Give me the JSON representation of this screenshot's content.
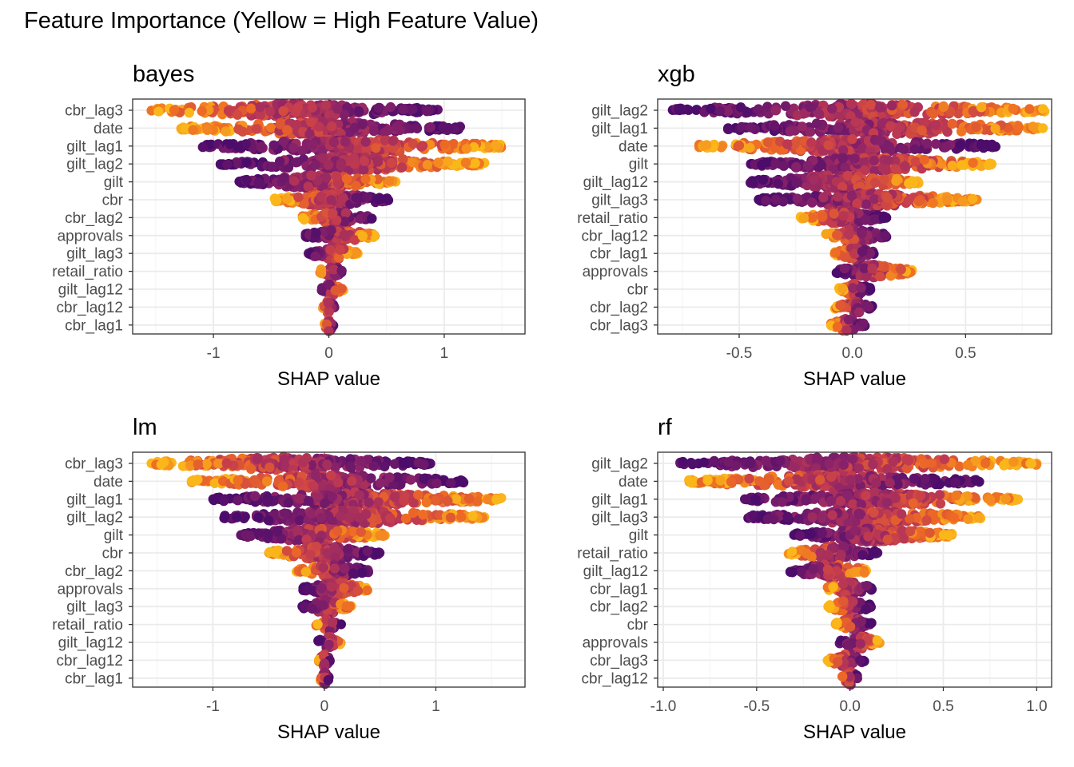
{
  "title": "Feature Importance (Yellow = High Feature Value)",
  "colors": {
    "low": "#4b0c6b",
    "mid": "#c43c4e",
    "high": "#fbb61a",
    "grid": "#ebebeb",
    "zero_line": "#9a9a9a",
    "border": "#333333"
  },
  "chart_data": [
    {
      "type": "scatter",
      "subtype": "beeswarm",
      "title": "bayes",
      "xlabel": "SHAP value",
      "xlim": [
        -1.7,
        1.7
      ],
      "xticks": [
        -1,
        0,
        1
      ],
      "xtick_labels": [
        "-1",
        "0",
        "1"
      ],
      "categories": [
        "cbr_lag3",
        "date",
        "gilt_lag1",
        "gilt_lag2",
        "gilt",
        "cbr",
        "cbr_lag2",
        "approvals",
        "gilt_lag3",
        "retail_ratio",
        "gilt_lag12",
        "cbr_lag12",
        "cbr_lag1"
      ],
      "ranges": [
        [
          -1.55,
          0.95
        ],
        [
          -1.28,
          1.15
        ],
        [
          -1.1,
          1.55
        ],
        [
          -0.95,
          1.35
        ],
        [
          -0.78,
          0.58
        ],
        [
          -0.48,
          0.52
        ],
        [
          -0.25,
          0.38
        ],
        [
          -0.22,
          0.4
        ],
        [
          -0.18,
          0.25
        ],
        [
          -0.08,
          0.12
        ],
        [
          -0.07,
          0.13
        ],
        [
          -0.05,
          0.05
        ],
        [
          -0.04,
          0.04
        ]
      ]
    },
    {
      "type": "scatter",
      "subtype": "beeswarm",
      "title": "xgb",
      "xlabel": "SHAP value",
      "xlim": [
        -0.86,
        0.88
      ],
      "xticks": [
        -0.5,
        0,
        0.5
      ],
      "xtick_labels": [
        "-0.5",
        "0.0",
        "0.5"
      ],
      "categories": [
        "gilt_lag2",
        "gilt_lag1",
        "date",
        "gilt",
        "gilt_lag12",
        "gilt_lag3",
        "retail_ratio",
        "cbr_lag12",
        "cbr_lag1",
        "approvals",
        "cbr",
        "cbr_lag2",
        "cbr_lag3"
      ],
      "ranges": [
        [
          -0.8,
          0.85
        ],
        [
          -0.55,
          0.85
        ],
        [
          -0.68,
          0.65
        ],
        [
          -0.45,
          0.62
        ],
        [
          -0.45,
          0.3
        ],
        [
          -0.42,
          0.55
        ],
        [
          -0.23,
          0.15
        ],
        [
          -0.12,
          0.15
        ],
        [
          -0.08,
          0.1
        ],
        [
          -0.08,
          0.27
        ],
        [
          -0.06,
          0.08
        ],
        [
          -0.08,
          0.09
        ],
        [
          -0.1,
          0.06
        ]
      ]
    },
    {
      "type": "scatter",
      "subtype": "beeswarm",
      "title": "lm",
      "xlabel": "SHAP value",
      "xlim": [
        -1.72,
        1.8
      ],
      "xticks": [
        -1,
        0,
        1
      ],
      "xtick_labels": [
        "-1",
        "0",
        "1"
      ],
      "categories": [
        "cbr_lag3",
        "date",
        "gilt_lag1",
        "gilt_lag2",
        "gilt",
        "cbr",
        "cbr_lag2",
        "approvals",
        "gilt_lag3",
        "retail_ratio",
        "gilt_lag12",
        "cbr_lag12",
        "cbr_lag1"
      ],
      "ranges": [
        [
          -1.58,
          0.95
        ],
        [
          -1.2,
          1.25
        ],
        [
          -1.0,
          1.6
        ],
        [
          -0.9,
          1.45
        ],
        [
          -0.75,
          0.55
        ],
        [
          -0.5,
          0.5
        ],
        [
          -0.25,
          0.4
        ],
        [
          -0.2,
          0.4
        ],
        [
          -0.2,
          0.25
        ],
        [
          -0.08,
          0.15
        ],
        [
          -0.06,
          0.15
        ],
        [
          -0.05,
          0.05
        ],
        [
          -0.04,
          0.04
        ]
      ]
    },
    {
      "type": "scatter",
      "subtype": "beeswarm",
      "title": "rf",
      "xlabel": "SHAP value",
      "xlim": [
        -1.03,
        1.08
      ],
      "xticks": [
        -1,
        -0.5,
        0,
        0.5,
        1
      ],
      "xtick_labels": [
        "-1.0",
        "-0.5",
        "0.0",
        "0.5",
        "1.0"
      ],
      "categories": [
        "gilt_lag2",
        "date",
        "gilt_lag1",
        "gilt_lag3",
        "gilt",
        "retail_ratio",
        "gilt_lag12",
        "cbr_lag1",
        "cbr_lag2",
        "cbr",
        "approvals",
        "cbr_lag3",
        "cbr_lag12"
      ],
      "ranges": [
        [
          -0.92,
          1.0
        ],
        [
          -0.88,
          0.7
        ],
        [
          -0.58,
          0.9
        ],
        [
          -0.55,
          0.7
        ],
        [
          -0.3,
          0.55
        ],
        [
          -0.33,
          0.15
        ],
        [
          -0.32,
          0.1
        ],
        [
          -0.12,
          0.12
        ],
        [
          -0.12,
          0.12
        ],
        [
          -0.08,
          0.12
        ],
        [
          -0.06,
          0.16
        ],
        [
          -0.12,
          0.08
        ],
        [
          -0.05,
          0.05
        ]
      ]
    }
  ]
}
